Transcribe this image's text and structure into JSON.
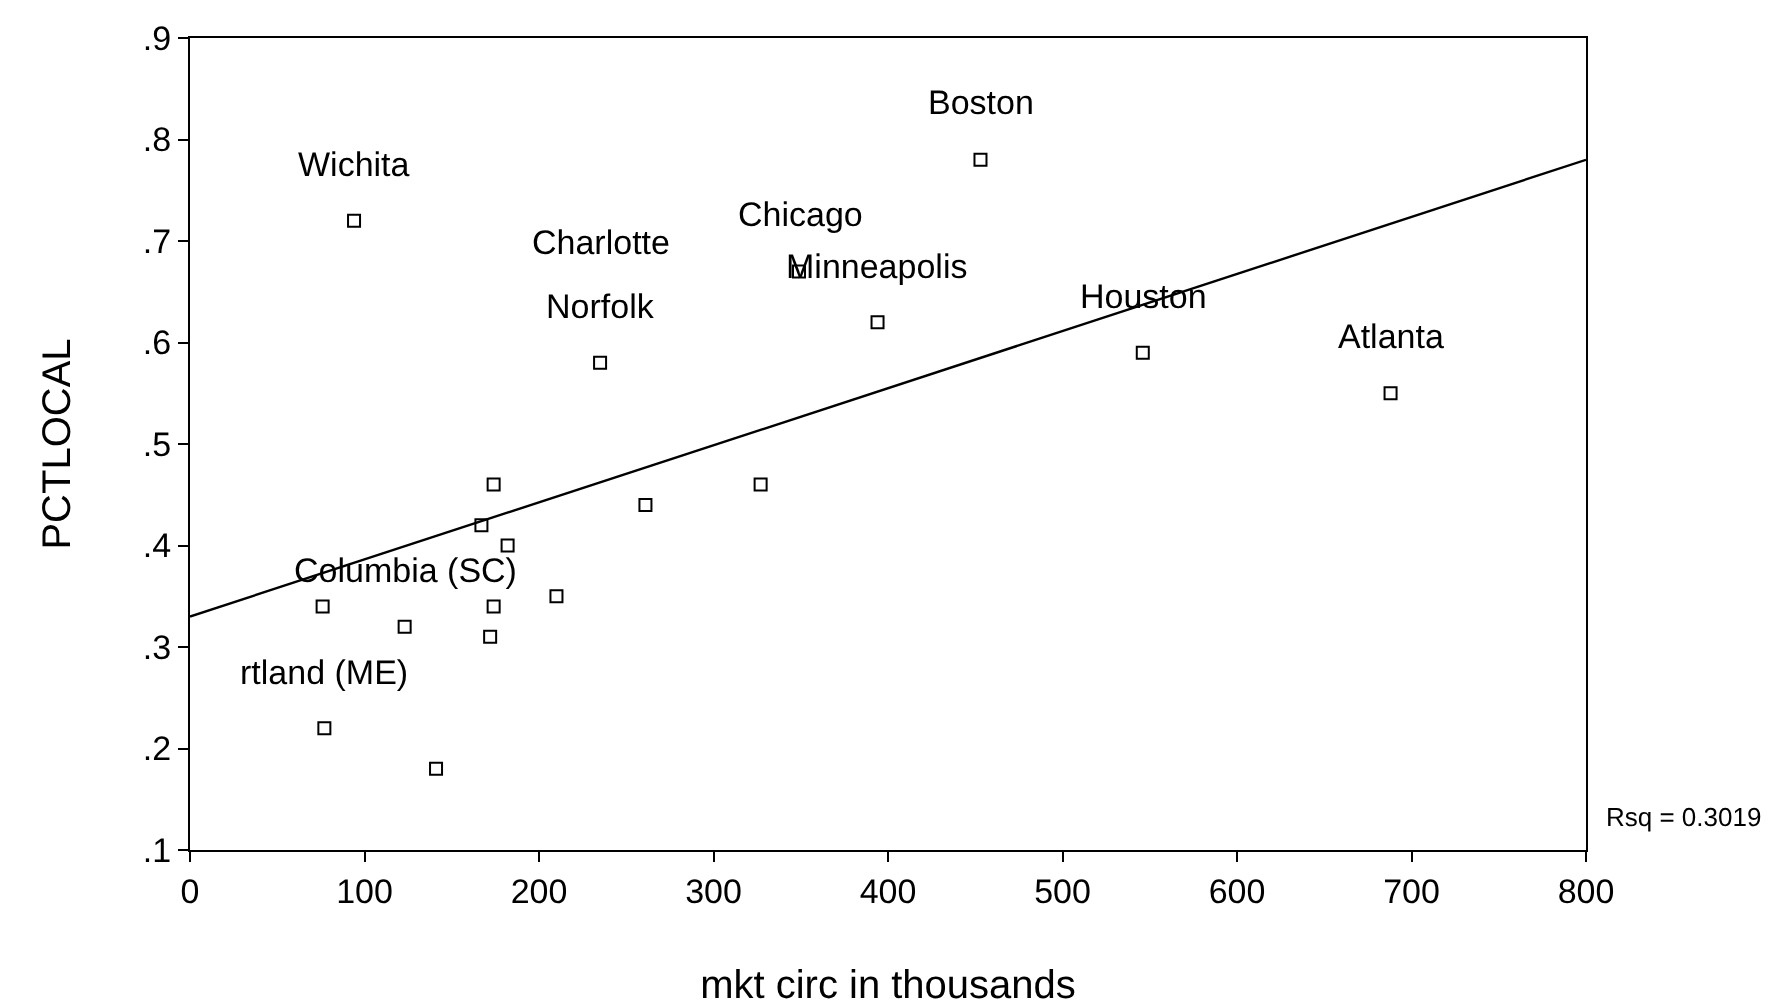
{
  "chart_data": {
    "type": "scatter",
    "xlabel": "mkt circ in thousands",
    "ylabel": "PCTLOCAL",
    "xlim": [
      0,
      800
    ],
    "xticks": [
      0,
      100,
      200,
      300,
      400,
      500,
      600,
      700,
      800
    ],
    "ylim": [
      0.1,
      0.9
    ],
    "yticks": [
      {
        "value": 0.1,
        "label": ".1"
      },
      {
        "value": 0.2,
        "label": ".2"
      },
      {
        "value": 0.3,
        "label": ".3"
      },
      {
        "value": 0.4,
        "label": ".4"
      },
      {
        "value": 0.5,
        "label": ".5"
      },
      {
        "value": 0.6,
        "label": ".6"
      },
      {
        "value": 0.7,
        "label": ".7"
      },
      {
        "value": 0.8,
        "label": ".8"
      },
      {
        "value": 0.9,
        "label": ".9"
      }
    ],
    "grid": false,
    "marker": "square",
    "series": [
      {
        "type": "scatter",
        "color": "#000000",
        "x": [
          94,
          453,
          349,
          235,
          394,
          546,
          688,
          76,
          123,
          77,
          141,
          172,
          174,
          210,
          167,
          182,
          174,
          261,
          327
        ],
        "values": [
          0.72,
          0.78,
          0.67,
          0.58,
          0.62,
          0.59,
          0.55,
          0.34,
          0.32,
          0.22,
          0.18,
          0.31,
          0.34,
          0.35,
          0.42,
          0.4,
          0.46,
          0.44,
          0.46
        ]
      },
      {
        "type": "line",
        "color": "#000000",
        "x": [
          0,
          800
        ],
        "values": [
          0.33,
          0.78
        ],
        "marker": "none",
        "line_style": "solid"
      }
    ],
    "annotations": [
      {
        "text": "Wichita",
        "x": 94,
        "y": 0.72
      },
      {
        "text": "Boston",
        "x": 453,
        "y": 0.78
      },
      {
        "text": "Norfolk",
        "x": 235,
        "y": 0.58
      },
      {
        "text": "Charlotte",
        "x": 235,
        "y": 0.58
      },
      {
        "text": "Chicago",
        "x": 349,
        "y": 0.67
      },
      {
        "text": "Minneapolis",
        "x": 394,
        "y": 0.62
      },
      {
        "text": "Houston",
        "x": 546,
        "y": 0.59
      },
      {
        "text": "Atlanta",
        "x": 688,
        "y": 0.55
      },
      {
        "text": "Columbia (SC)",
        "x": 123,
        "y": 0.32
      },
      {
        "text": "rtland (ME)",
        "x": 77,
        "y": 0.22
      },
      "Rsq = 0.3019"
    ]
  }
}
